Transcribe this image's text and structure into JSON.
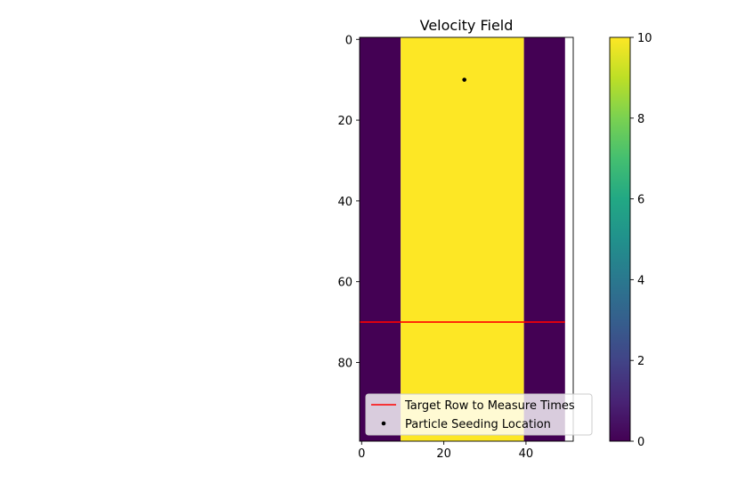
{
  "chart_data": {
    "type": "heatmap",
    "title": "Velocity Field",
    "xlabel": "",
    "ylabel": "",
    "x_ticks": [
      0,
      20,
      40
    ],
    "y_ticks": [
      0,
      20,
      40,
      60,
      80
    ],
    "xlim": [
      -0.5,
      51.5
    ],
    "ylim": [
      99.5,
      -0.5
    ],
    "y_inverted": true,
    "field": {
      "columns": 50,
      "rows": 100,
      "regions": [
        {
          "x_from": 0,
          "x_to": 10,
          "value": 0
        },
        {
          "x_from": 10,
          "x_to": 40,
          "value": 10
        },
        {
          "x_from": 40,
          "x_to": 50,
          "value": 0
        }
      ]
    },
    "colormap": "viridis",
    "colorbar": {
      "min": 0,
      "max": 10,
      "ticks": [
        0,
        2,
        4,
        6,
        8,
        10
      ]
    },
    "overlays": [
      {
        "kind": "hline",
        "name": "Target Row to Measure Times",
        "y": 70,
        "x_from": -0.5,
        "x_to": 49.5,
        "color": "#ff0000"
      },
      {
        "kind": "point",
        "name": "Particle Seeding Location",
        "x": 25,
        "y": 10,
        "color": "#000000"
      }
    ],
    "legend": {
      "placement": "lower center",
      "entries": [
        {
          "label": "Target Row to Measure Times",
          "marker": "line",
          "color": "#ff0000"
        },
        {
          "label": "Particle Seeding Location",
          "marker": "dot",
          "color": "#000000"
        }
      ]
    },
    "grid": false
  }
}
